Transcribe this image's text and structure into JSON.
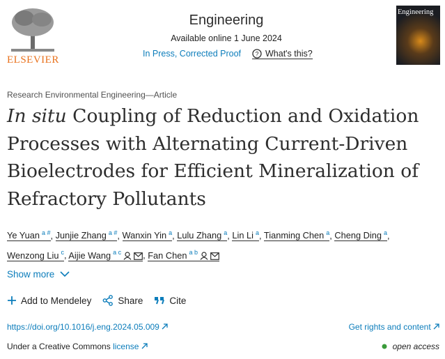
{
  "header": {
    "publisher": "ELSEVIER",
    "journal": "Engineering",
    "available": "Available online 1 June 2024",
    "status": "In Press, Corrected Proof",
    "whats_this": "What's this?",
    "cover_title": "Engineering"
  },
  "article_type": "Research Environmental Engineering—Article",
  "title": {
    "italic": "In situ",
    "rest": " Coupling of Reduction and Oxidation Processes with Alternating Current-Driven Bioelectrodes for Efficient Mineralization of Refractory Pollutants"
  },
  "author_separator": ",",
  "authors": [
    {
      "name": "Ye Yuan",
      "sup": "a #",
      "corresponding": false
    },
    {
      "name": "Junjie Zhang",
      "sup": "a #",
      "corresponding": false
    },
    {
      "name": "Wanxin Yin",
      "sup": "a",
      "corresponding": false
    },
    {
      "name": "Lulu Zhang",
      "sup": "a",
      "corresponding": false
    },
    {
      "name": "Lin Li",
      "sup": "a",
      "corresponding": false
    },
    {
      "name": "Tianming Chen",
      "sup": "a",
      "corresponding": false
    },
    {
      "name": "Cheng Ding",
      "sup": "a",
      "corresponding": false
    },
    {
      "name": "Wenzong Liu",
      "sup": "c",
      "corresponding": false
    },
    {
      "name": "Aijie Wang",
      "sup": "a c",
      "corresponding": true
    },
    {
      "name": "Fan Chen",
      "sup": "a b",
      "corresponding": true
    }
  ],
  "show_more": "Show more",
  "actions": {
    "mendeley": "Add to Mendeley",
    "share": "Share",
    "cite": "Cite"
  },
  "doi": "https://doi.org/10.1016/j.eng.2024.05.009",
  "rights": "Get rights and content",
  "license_text": "Under a Creative Commons",
  "license_link": "license",
  "open_access": "open access"
}
